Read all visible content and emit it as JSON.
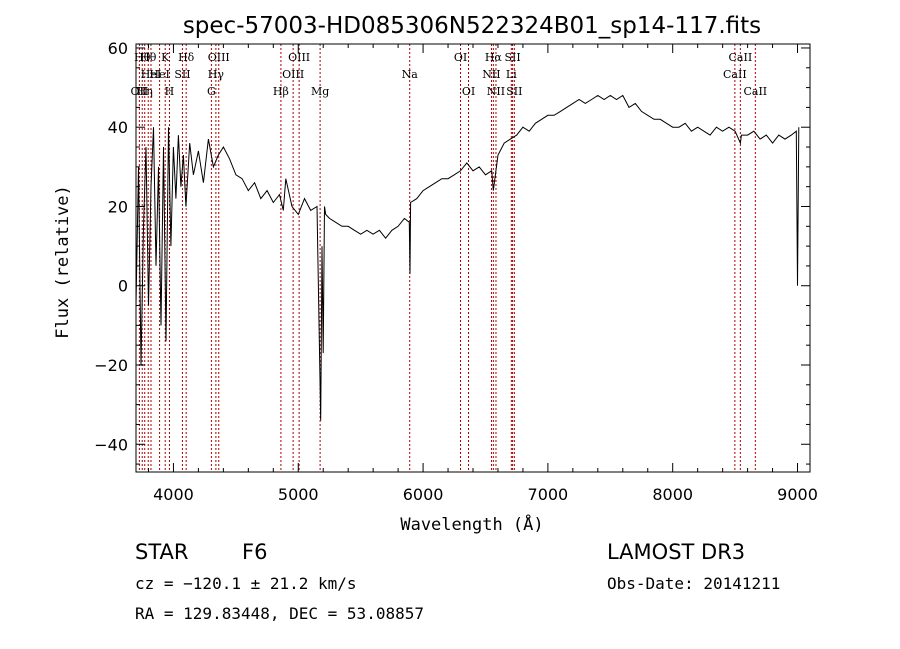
{
  "chart_data": {
    "type": "line",
    "title": "spec-57003-HD085306N522324B01_sp14-117.fits",
    "xlabel": "Wavelength (Å)",
    "ylabel": "Flux (relative)",
    "xlim": [
      3700,
      9100
    ],
    "ylim": [
      -47,
      61
    ],
    "xticks": [
      4000,
      5000,
      6000,
      7000,
      8000,
      9000
    ],
    "yticks": [
      -40,
      -20,
      0,
      20,
      40,
      60
    ],
    "xtick_labels": [
      "4000",
      "5000",
      "6000",
      "7000",
      "8000",
      "9000"
    ],
    "ytick_labels": [
      "−40",
      "−20",
      "0",
      "20",
      "40",
      "60"
    ],
    "grid": false,
    "line_color": "#000000",
    "marker_color": "#aa0000",
    "series": [
      {
        "x": [
          3700,
          3720,
          3740,
          3760,
          3780,
          3800,
          3820,
          3840,
          3860,
          3880,
          3900,
          3920,
          3940,
          3960,
          3980,
          4000,
          4020,
          4040,
          4060,
          4080,
          4100,
          4130,
          4160,
          4200,
          4240,
          4280,
          4320,
          4360,
          4400,
          4450,
          4500,
          4550,
          4600,
          4650,
          4700,
          4750,
          4800,
          4850,
          4880,
          4900,
          4950,
          5000,
          5050,
          5100,
          5150,
          5180,
          5190,
          5200,
          5210,
          5220,
          5250,
          5300,
          5350,
          5400,
          5450,
          5500,
          5550,
          5600,
          5650,
          5700,
          5750,
          5800,
          5850,
          5890,
          5895,
          5900,
          5950,
          6000,
          6050,
          6100,
          6150,
          6200,
          6250,
          6300,
          6350,
          6400,
          6450,
          6500,
          6550,
          6563,
          6600,
          6650,
          6700,
          6750,
          6800,
          6850,
          6900,
          6950,
          7000,
          7050,
          7100,
          7150,
          7200,
          7250,
          7300,
          7350,
          7400,
          7450,
          7500,
          7550,
          7600,
          7650,
          7700,
          7750,
          7800,
          7850,
          7900,
          7950,
          8000,
          8050,
          8100,
          8150,
          8200,
          8250,
          8300,
          8350,
          8400,
          8450,
          8500,
          8542,
          8550,
          8600,
          8650,
          8700,
          8750,
          8800,
          8850,
          8900,
          8950,
          8990,
          9000,
          9010
        ],
        "y": [
          -5,
          30,
          -20,
          15,
          35,
          -5,
          25,
          40,
          5,
          30,
          -10,
          35,
          -14,
          40,
          10,
          35,
          22,
          38,
          25,
          33,
          20,
          36,
          28,
          34,
          26,
          37,
          30,
          33,
          35,
          32,
          28,
          27,
          24,
          26,
          22,
          24,
          21,
          23,
          19,
          27,
          20,
          18,
          22,
          19,
          20,
          -34,
          10,
          -17,
          20,
          18,
          17,
          16,
          15,
          15,
          14,
          13,
          14,
          13,
          14,
          12,
          14,
          15,
          17,
          16,
          3,
          21,
          22,
          24,
          25,
          26,
          27,
          27,
          28,
          29,
          31,
          29,
          30,
          28,
          29,
          24,
          33,
          36,
          37,
          38,
          40,
          39,
          41,
          42,
          43,
          43,
          44,
          45,
          46,
          47,
          46,
          47,
          48,
          47,
          48,
          47,
          48,
          45,
          46,
          44,
          43,
          42,
          42,
          41,
          40,
          40,
          41,
          39,
          40,
          39,
          38,
          40,
          39,
          40,
          39,
          36,
          38,
          38,
          39,
          37,
          38,
          36,
          38,
          37,
          38,
          39,
          0,
          40
        ]
      }
    ],
    "line_markers": [
      {
        "x": 3727,
        "label": "OII",
        "row": 3
      },
      {
        "x": 3750,
        "label": "Hθ",
        "row": 1
      },
      {
        "x": 3770,
        "label": "Hη",
        "row": 3
      },
      {
        "x": 3798,
        "label": "Hθ",
        "row": 1
      },
      {
        "x": 3820,
        "label": "HeI",
        "row": 2
      },
      {
        "x": 3889,
        "label": "HeI",
        "row": 2
      },
      {
        "x": 3934,
        "label": "K",
        "row": 1
      },
      {
        "x": 3968,
        "label": "H",
        "row": 3
      },
      {
        "x": 4072,
        "label": "SII",
        "row": 2
      },
      {
        "x": 4102,
        "label": "Hδ",
        "row": 1
      },
      {
        "x": 4304,
        "label": "G",
        "row": 3
      },
      {
        "x": 4340,
        "label": "Hγ",
        "row": 2
      },
      {
        "x": 4363,
        "label": "OIII",
        "row": 1
      },
      {
        "x": 4861,
        "label": "Hβ",
        "row": 3
      },
      {
        "x": 4959,
        "label": "OIII",
        "row": 2
      },
      {
        "x": 5007,
        "label": "OIII",
        "row": 1
      },
      {
        "x": 5175,
        "label": "Mg",
        "row": 3
      },
      {
        "x": 5893,
        "label": "Na",
        "row": 2
      },
      {
        "x": 6300,
        "label": "OI",
        "row": 1
      },
      {
        "x": 6364,
        "label": "OI",
        "row": 3
      },
      {
        "x": 6548,
        "label": "NII",
        "row": 2
      },
      {
        "x": 6563,
        "label": "Hα",
        "row": 1
      },
      {
        "x": 6584,
        "label": "NII",
        "row": 3
      },
      {
        "x": 6707,
        "label": "Li",
        "row": 2
      },
      {
        "x": 6717,
        "label": "SII",
        "row": 1
      },
      {
        "x": 6731,
        "label": "SII",
        "row": 3
      },
      {
        "x": 8498,
        "label": "CaII",
        "row": 2
      },
      {
        "x": 8542,
        "label": "CaII",
        "row": 1
      },
      {
        "x": 8662,
        "label": "CaII",
        "row": 3
      }
    ]
  },
  "info": {
    "object_class": "STAR",
    "subclass": "F6",
    "survey": "LAMOST DR3",
    "velocity": "cz = −120.1 ± 21.2 km/s",
    "obs_date": "Obs-Date: 20141211",
    "coords": "RA = 129.83448, DEC =  53.08857"
  }
}
